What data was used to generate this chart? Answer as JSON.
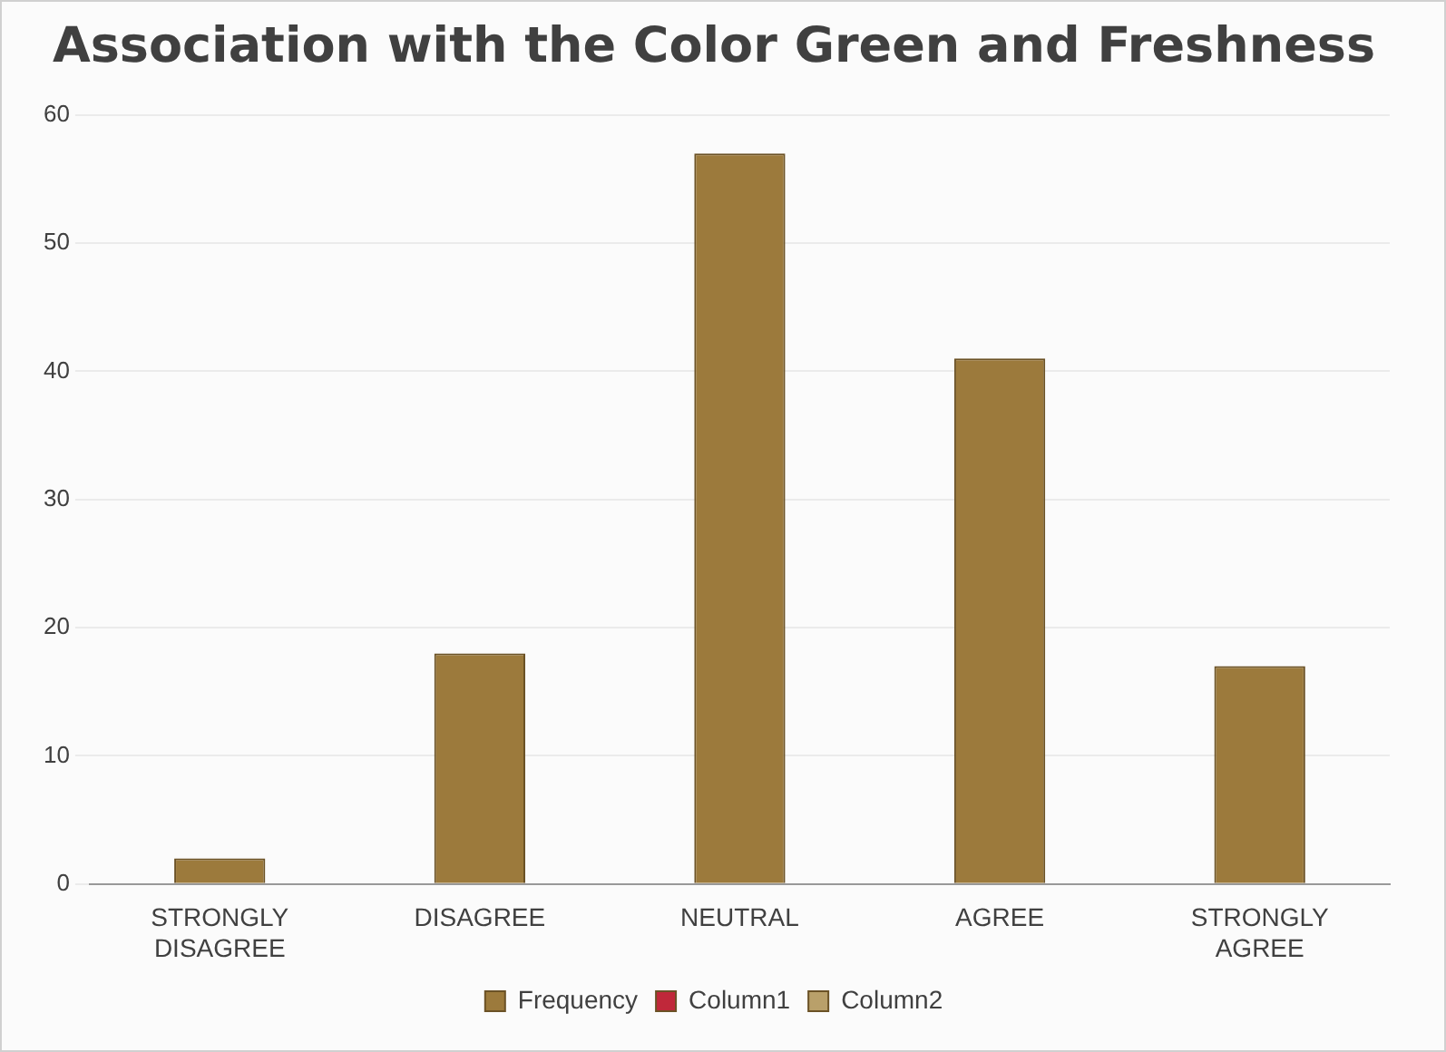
{
  "chart_data": {
    "type": "bar",
    "title": "Association with the Color Green and Freshness",
    "categories": [
      "STRONGLY DISAGREE",
      "DISAGREE",
      "NEUTRAL",
      "AGREE",
      "STRONGLY AGREE"
    ],
    "series": [
      {
        "name": "Frequency",
        "color": "#9c7a3c",
        "values": [
          2,
          18,
          57,
          41,
          17
        ]
      },
      {
        "name": "Column1",
        "color": "#c0283a",
        "values": [
          null,
          null,
          null,
          null,
          null
        ]
      },
      {
        "name": "Column2",
        "color": "#b9a06a",
        "values": [
          null,
          null,
          null,
          null,
          null
        ]
      }
    ],
    "ylim": [
      0,
      60
    ],
    "yticks": [
      0,
      10,
      20,
      30,
      40,
      50,
      60
    ],
    "grid": "y",
    "legend": "bottom"
  }
}
